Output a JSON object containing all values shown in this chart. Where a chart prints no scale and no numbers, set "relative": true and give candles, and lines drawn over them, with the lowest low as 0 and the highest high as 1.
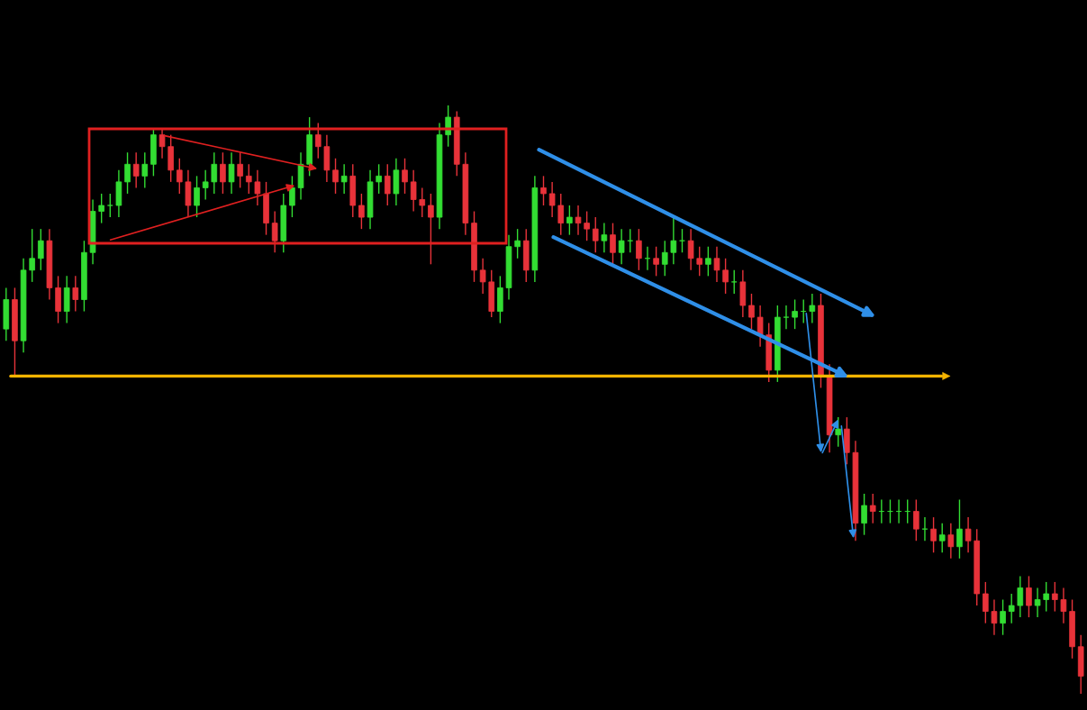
{
  "chart_data": {
    "type": "candlestick",
    "relative": true,
    "categories": [
      null,
      null,
      null,
      null,
      null,
      null,
      null,
      null,
      null,
      null,
      null,
      null,
      null,
      null,
      null,
      null,
      null,
      null,
      null,
      null,
      null,
      null,
      null,
      null,
      null,
      null,
      null,
      null,
      null,
      null,
      null,
      null,
      null,
      null,
      null,
      null,
      null,
      null,
      null,
      null,
      null,
      null,
      null,
      null,
      null,
      null,
      null,
      null,
      null,
      null,
      null,
      null,
      null,
      null,
      null,
      null,
      null,
      null,
      null,
      null,
      null,
      null,
      null,
      null,
      null,
      null,
      null,
      null,
      null,
      null,
      null,
      null,
      null,
      null,
      null,
      null,
      null,
      null,
      null,
      null,
      null,
      null,
      null,
      null,
      null,
      null,
      null,
      null,
      null,
      null,
      null,
      null,
      null,
      null,
      null,
      null,
      null,
      null,
      null,
      null,
      null,
      null,
      null,
      null,
      null,
      null,
      null,
      null,
      null,
      null,
      null,
      null,
      null,
      null,
      null,
      null,
      null,
      null,
      null,
      null,
      null,
      null,
      null,
      null,
      null
    ],
    "ohlc": [
      [
        0.62,
        0.69,
        0.6,
        0.67
      ],
      [
        0.67,
        0.69,
        0.54,
        0.6
      ],
      [
        0.6,
        0.74,
        0.58,
        0.72
      ],
      [
        0.72,
        0.79,
        0.7,
        0.74
      ],
      [
        0.74,
        0.79,
        0.72,
        0.77
      ],
      [
        0.77,
        0.79,
        0.67,
        0.69
      ],
      [
        0.69,
        0.71,
        0.63,
        0.65
      ],
      [
        0.65,
        0.71,
        0.63,
        0.69
      ],
      [
        0.69,
        0.71,
        0.65,
        0.67
      ],
      [
        0.67,
        0.77,
        0.65,
        0.75
      ],
      [
        0.75,
        0.84,
        0.73,
        0.82
      ],
      [
        0.82,
        0.85,
        0.8,
        0.83
      ],
      [
        0.83,
        0.85,
        0.81,
        0.83
      ],
      [
        0.83,
        0.89,
        0.81,
        0.87
      ],
      [
        0.87,
        0.92,
        0.85,
        0.9
      ],
      [
        0.9,
        0.92,
        0.86,
        0.88
      ],
      [
        0.88,
        0.92,
        0.86,
        0.9
      ],
      [
        0.9,
        0.96,
        0.88,
        0.95
      ],
      [
        0.95,
        0.96,
        0.91,
        0.93
      ],
      [
        0.93,
        0.95,
        0.87,
        0.89
      ],
      [
        0.89,
        0.91,
        0.85,
        0.87
      ],
      [
        0.87,
        0.89,
        0.81,
        0.83
      ],
      [
        0.83,
        0.88,
        0.81,
        0.86
      ],
      [
        0.86,
        0.89,
        0.84,
        0.87
      ],
      [
        0.87,
        0.92,
        0.85,
        0.9
      ],
      [
        0.9,
        0.92,
        0.85,
        0.87
      ],
      [
        0.87,
        0.92,
        0.85,
        0.9
      ],
      [
        0.9,
        0.92,
        0.86,
        0.88
      ],
      [
        0.88,
        0.9,
        0.85,
        0.87
      ],
      [
        0.87,
        0.89,
        0.83,
        0.85
      ],
      [
        0.85,
        0.87,
        0.78,
        0.8
      ],
      [
        0.8,
        0.82,
        0.75,
        0.77
      ],
      [
        0.77,
        0.85,
        0.75,
        0.83
      ],
      [
        0.83,
        0.88,
        0.81,
        0.86
      ],
      [
        0.86,
        0.92,
        0.84,
        0.9
      ],
      [
        0.9,
        0.98,
        0.88,
        0.95
      ],
      [
        0.95,
        0.97,
        0.91,
        0.93
      ],
      [
        0.93,
        0.95,
        0.87,
        0.89
      ],
      [
        0.89,
        0.91,
        0.85,
        0.87
      ],
      [
        0.87,
        0.9,
        0.85,
        0.88
      ],
      [
        0.88,
        0.9,
        0.81,
        0.83
      ],
      [
        0.83,
        0.85,
        0.79,
        0.81
      ],
      [
        0.81,
        0.89,
        0.79,
        0.87
      ],
      [
        0.87,
        0.9,
        0.85,
        0.88
      ],
      [
        0.88,
        0.9,
        0.83,
        0.85
      ],
      [
        0.85,
        0.91,
        0.83,
        0.89
      ],
      [
        0.89,
        0.91,
        0.85,
        0.87
      ],
      [
        0.87,
        0.89,
        0.82,
        0.84
      ],
      [
        0.84,
        0.86,
        0.81,
        0.83
      ],
      [
        0.83,
        0.85,
        0.73,
        0.81
      ],
      [
        0.81,
        0.97,
        0.79,
        0.95
      ],
      [
        0.95,
        1.0,
        0.93,
        0.98
      ],
      [
        0.98,
        0.99,
        0.88,
        0.9
      ],
      [
        0.9,
        0.92,
        0.78,
        0.8
      ],
      [
        0.8,
        0.82,
        0.7,
        0.72
      ],
      [
        0.72,
        0.74,
        0.68,
        0.7
      ],
      [
        0.7,
        0.72,
        0.64,
        0.65
      ],
      [
        0.65,
        0.71,
        0.63,
        0.69
      ],
      [
        0.69,
        0.78,
        0.67,
        0.76
      ],
      [
        0.76,
        0.79,
        0.74,
        0.77
      ],
      [
        0.77,
        0.79,
        0.7,
        0.72
      ],
      [
        0.72,
        0.88,
        0.7,
        0.86
      ],
      [
        0.86,
        0.88,
        0.83,
        0.85
      ],
      [
        0.85,
        0.87,
        0.81,
        0.83
      ],
      [
        0.83,
        0.85,
        0.78,
        0.8
      ],
      [
        0.8,
        0.83,
        0.78,
        0.81
      ],
      [
        0.81,
        0.83,
        0.78,
        0.8
      ],
      [
        0.8,
        0.82,
        0.77,
        0.79
      ],
      [
        0.79,
        0.81,
        0.75,
        0.77
      ],
      [
        0.77,
        0.8,
        0.75,
        0.78
      ],
      [
        0.78,
        0.8,
        0.73,
        0.75
      ],
      [
        0.75,
        0.79,
        0.73,
        0.77
      ],
      [
        0.77,
        0.79,
        0.75,
        0.77
      ],
      [
        0.77,
        0.79,
        0.72,
        0.74
      ],
      [
        0.74,
        0.76,
        0.72,
        0.74
      ],
      [
        0.74,
        0.76,
        0.71,
        0.73
      ],
      [
        0.73,
        0.77,
        0.71,
        0.75
      ],
      [
        0.75,
        0.81,
        0.73,
        0.77
      ],
      [
        0.77,
        0.79,
        0.75,
        0.77
      ],
      [
        0.77,
        0.79,
        0.72,
        0.74
      ],
      [
        0.74,
        0.76,
        0.71,
        0.73
      ],
      [
        0.73,
        0.76,
        0.71,
        0.74
      ],
      [
        0.74,
        0.76,
        0.7,
        0.72
      ],
      [
        0.72,
        0.74,
        0.68,
        0.7
      ],
      [
        0.7,
        0.72,
        0.68,
        0.7
      ],
      [
        0.7,
        0.72,
        0.64,
        0.66
      ],
      [
        0.66,
        0.68,
        0.62,
        0.64
      ],
      [
        0.64,
        0.66,
        0.59,
        0.61
      ],
      [
        0.61,
        0.63,
        0.53,
        0.55
      ],
      [
        0.55,
        0.66,
        0.53,
        0.64
      ],
      [
        0.64,
        0.66,
        0.62,
        0.64
      ],
      [
        0.64,
        0.67,
        0.62,
        0.65
      ],
      [
        0.65,
        0.67,
        0.63,
        0.65
      ],
      [
        0.65,
        0.68,
        0.63,
        0.66
      ],
      [
        0.66,
        0.68,
        0.52,
        0.54
      ],
      [
        0.54,
        0.56,
        0.41,
        0.44
      ],
      [
        0.44,
        0.47,
        0.42,
        0.45
      ],
      [
        0.45,
        0.47,
        0.39,
        0.41
      ],
      [
        0.41,
        0.43,
        0.26,
        0.29
      ],
      [
        0.29,
        0.34,
        0.27,
        0.32
      ],
      [
        0.32,
        0.34,
        0.29,
        0.31
      ],
      [
        0.31,
        0.33,
        0.29,
        0.31
      ],
      [
        0.31,
        0.33,
        0.29,
        0.31
      ],
      [
        0.31,
        0.33,
        0.29,
        0.31
      ],
      [
        0.31,
        0.33,
        0.29,
        0.31
      ],
      [
        0.31,
        0.33,
        0.26,
        0.28
      ],
      [
        0.28,
        0.3,
        0.26,
        0.28
      ],
      [
        0.28,
        0.3,
        0.24,
        0.26
      ],
      [
        0.26,
        0.29,
        0.24,
        0.27
      ],
      [
        0.27,
        0.29,
        0.23,
        0.25
      ],
      [
        0.25,
        0.33,
        0.23,
        0.28
      ],
      [
        0.28,
        0.3,
        0.24,
        0.26
      ],
      [
        0.26,
        0.28,
        0.15,
        0.17
      ],
      [
        0.17,
        0.19,
        0.12,
        0.14
      ],
      [
        0.14,
        0.16,
        0.1,
        0.12
      ],
      [
        0.12,
        0.16,
        0.1,
        0.14
      ],
      [
        0.14,
        0.17,
        0.12,
        0.15
      ],
      [
        0.15,
        0.2,
        0.13,
        0.18
      ],
      [
        0.18,
        0.2,
        0.13,
        0.15
      ],
      [
        0.15,
        0.18,
        0.13,
        0.16
      ],
      [
        0.16,
        0.19,
        0.14,
        0.17
      ],
      [
        0.17,
        0.19,
        0.14,
        0.16
      ],
      [
        0.16,
        0.18,
        0.12,
        0.14
      ],
      [
        0.14,
        0.16,
        0.06,
        0.08
      ],
      [
        0.08,
        0.1,
        0.0,
        0.03
      ]
    ],
    "ref_lines": [
      {
        "axis": "y",
        "value": 0.54,
        "color": "#f5b400"
      }
    ],
    "legend": false
  }
}
